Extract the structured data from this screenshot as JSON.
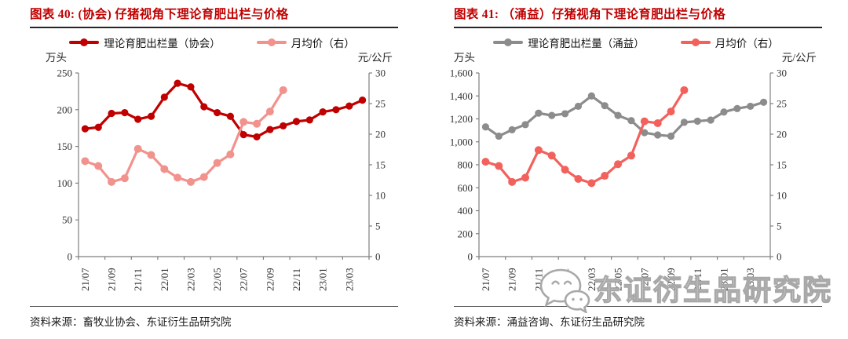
{
  "page": {
    "background": "#ffffff"
  },
  "figures": [
    {
      "title": "图表 40: (协会) 仔猪视角下理论育肥出栏与价格",
      "unit_left": "万头",
      "unit_right": "元/公斤",
      "source": "资料来源：畜牧业协会、东证衍生品研究院"
    },
    {
      "title": "图表 41: （涌益）仔猪视角下理论育肥出栏与价格",
      "unit_left": "万头",
      "unit_right": "元/公斤",
      "source": "资料来源：涌益咨询、东证衍生品研究院"
    }
  ],
  "watermark": {
    "text": "东证衍生品研究院",
    "logo": "wechat-bubbles-icon",
    "color": "#a8a8a8"
  },
  "chart_data": [
    {
      "type": "line",
      "title": "图表 40: (协会) 仔猪视角下理论育肥出栏与价格",
      "x": [
        "21/07",
        "21/08",
        "21/09",
        "21/10",
        "21/11",
        "21/12",
        "22/01",
        "22/02",
        "22/03",
        "22/04",
        "22/05",
        "22/06",
        "22/07",
        "22/08",
        "22/09",
        "22/10",
        "22/11",
        "22/12",
        "23/01",
        "23/02",
        "23/03",
        "23/04"
      ],
      "x_tick_step": 2,
      "ylabel_left": "万头",
      "ylabel_right": "元/公斤",
      "ylim_left": [
        0,
        250
      ],
      "ylim_right": [
        0,
        30
      ],
      "y_ticks_left": [
        0,
        50,
        100,
        150,
        200,
        250
      ],
      "y_ticks_right": [
        0,
        5,
        10,
        15,
        20,
        25,
        30
      ],
      "grid": false,
      "legend_position": "top",
      "series": [
        {
          "name": "理论育肥出栏量（协会）",
          "axis": "left",
          "color": "#c00000",
          "values": [
            174,
            176,
            195,
            196,
            187,
            191,
            217,
            236,
            231,
            204,
            196,
            191,
            166,
            163,
            173,
            178,
            184,
            186,
            197,
            200,
            205,
            213
          ]
        },
        {
          "name": "月均价（右）",
          "axis": "right",
          "color": "#f2928d",
          "values": [
            15.6,
            14.8,
            12.2,
            12.8,
            17.6,
            16.6,
            14.3,
            12.9,
            12.2,
            13.0,
            15.3,
            16.7,
            22.0,
            21.7,
            23.7,
            27.2
          ]
        }
      ]
    },
    {
      "type": "line",
      "title": "图表 41: （涌益）仔猪视角下理论育肥出栏与价格",
      "x": [
        "21/07",
        "21/08",
        "21/09",
        "21/10",
        "21/11",
        "21/12",
        "22/01",
        "22/02",
        "22/03",
        "22/04",
        "22/05",
        "22/06",
        "22/07",
        "22/08",
        "22/09",
        "22/10",
        "22/11",
        "22/12",
        "23/01",
        "23/02",
        "23/03",
        "23/04"
      ],
      "x_tick_step": 2,
      "ylabel_left": "万头",
      "ylabel_right": "元/公斤",
      "ylim_left": [
        0,
        1600
      ],
      "ylim_right": [
        0,
        30
      ],
      "y_ticks_left": [
        0,
        200,
        400,
        600,
        800,
        1000,
        1200,
        1400,
        1600
      ],
      "y_ticks_right": [
        0,
        5,
        10,
        15,
        20,
        25,
        30
      ],
      "grid": false,
      "legend_position": "top",
      "series": [
        {
          "name": "理论育肥出栏量（涌益）",
          "axis": "left",
          "color": "#8c8c8c",
          "values": [
            1130,
            1050,
            1105,
            1150,
            1250,
            1230,
            1245,
            1310,
            1400,
            1315,
            1230,
            1185,
            1080,
            1060,
            1050,
            1170,
            1180,
            1190,
            1260,
            1290,
            1310,
            1345
          ]
        },
        {
          "name": "月均价（右）",
          "axis": "right",
          "color": "#f2615c",
          "values": [
            15.5,
            14.8,
            12.2,
            12.9,
            17.4,
            16.5,
            14.2,
            12.7,
            12.0,
            13.2,
            15.1,
            16.5,
            22.1,
            21.8,
            23.7,
            27.2
          ]
        }
      ]
    }
  ]
}
